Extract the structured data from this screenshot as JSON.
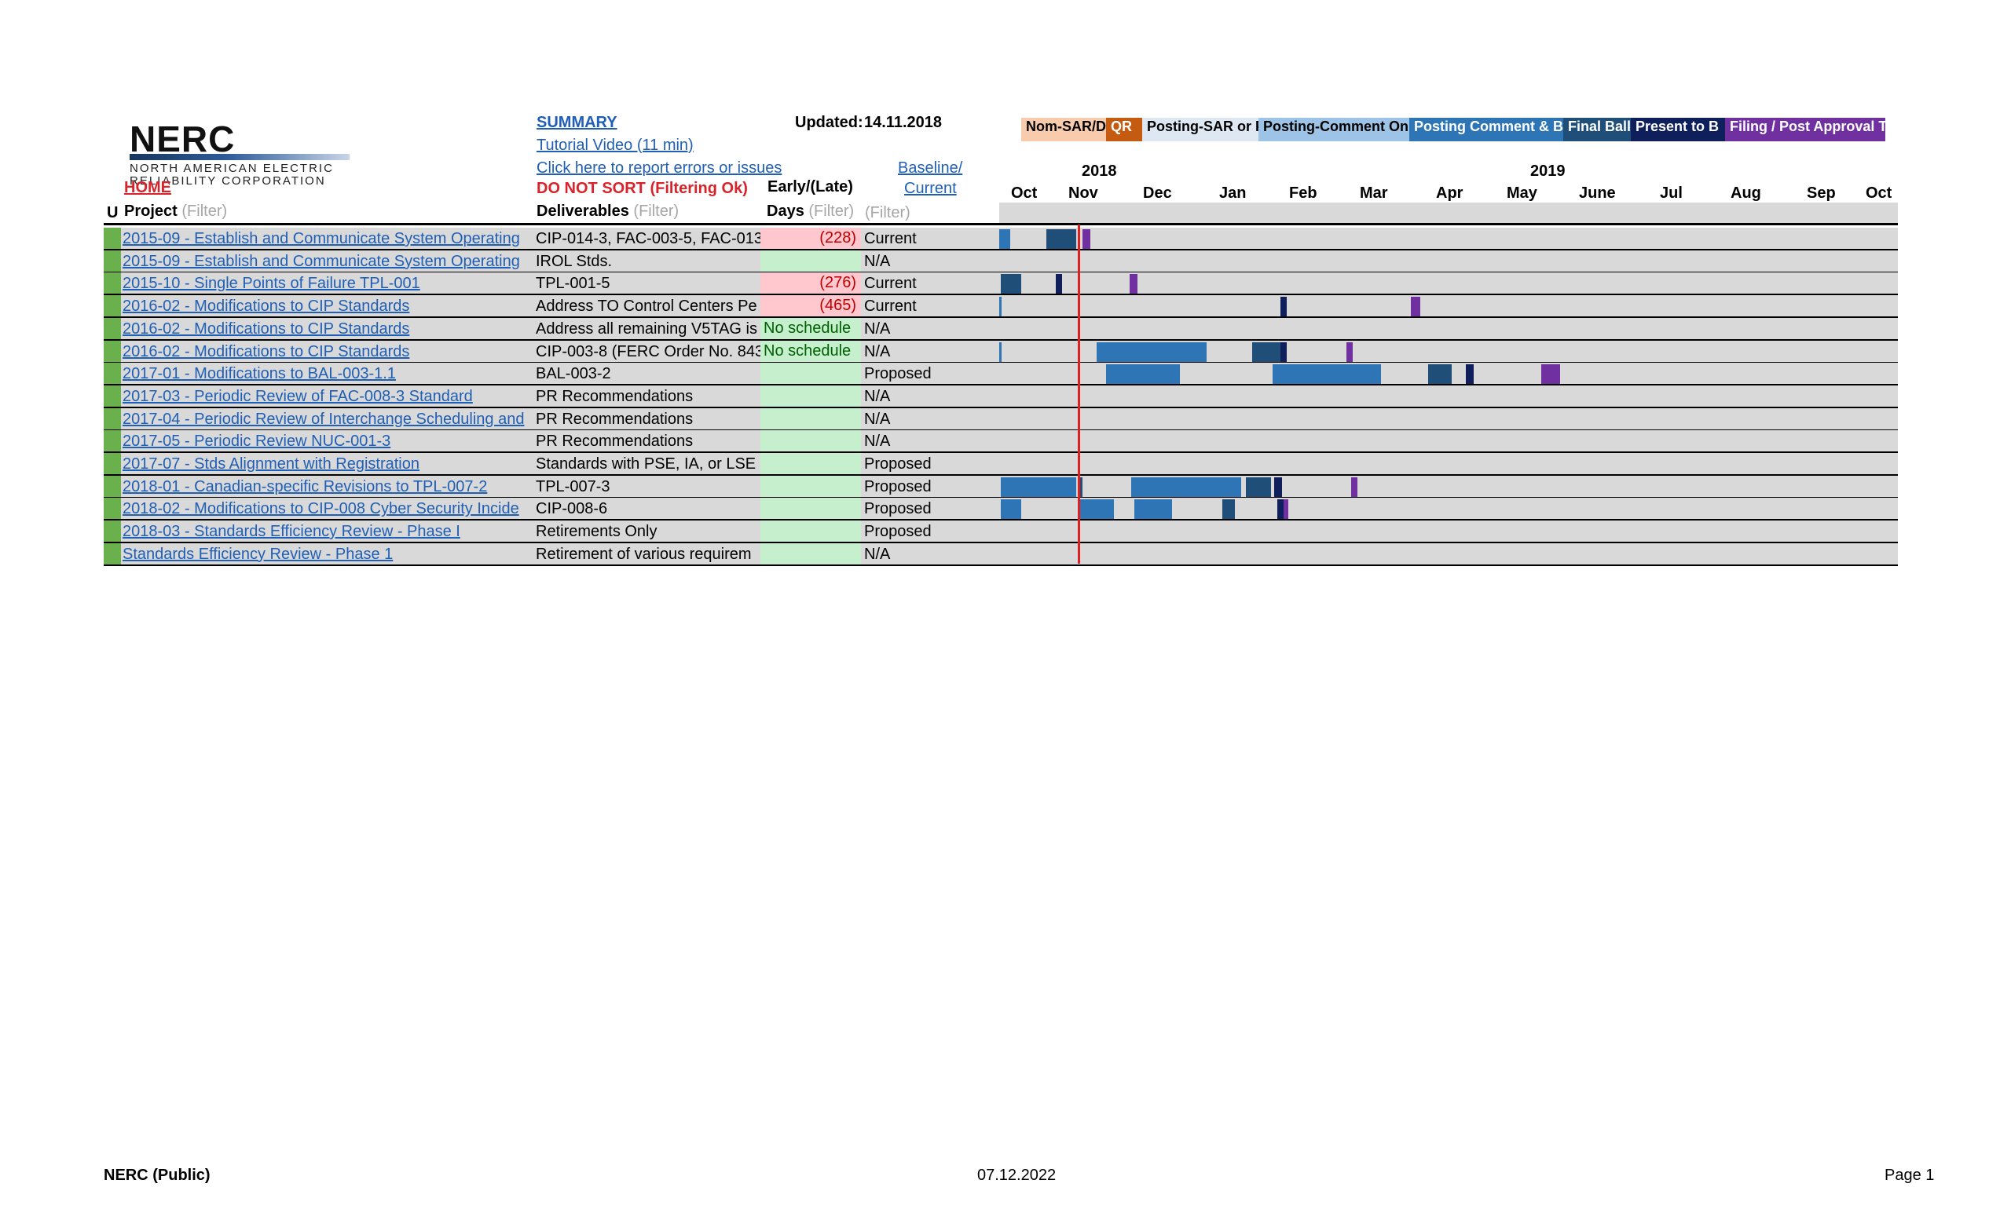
{
  "logo": {
    "word": "NERC",
    "line1": "NORTH AMERICAN ELECTRIC",
    "line2": "RELIABILITY CORPORATION"
  },
  "header": {
    "home": "HOME",
    "summary": "SUMMARY",
    "tutorial": "Tutorial Video (11 min)",
    "report": "Click here to report errors or issues",
    "do_not_sort": "DO NOT SORT (Filtering Ok)",
    "updated_label": "Updated:",
    "updated_value": "14.11.2018",
    "baseline": "Baseline/",
    "current": "Current",
    "early_late": "Early/(Late)"
  },
  "columns": {
    "u": "U",
    "project": "Project",
    "deliverables": "Deliverables",
    "days": "Days",
    "filter": "(Filter)"
  },
  "legend": [
    {
      "label": "Nom-SAR/D",
      "bg": "#f8cbad",
      "color": "#000000"
    },
    {
      "label": "QR",
      "bg": "#c55a11",
      "color": "#ffffff"
    },
    {
      "label": "Posting-SAR or P",
      "bg": "#dde8f3",
      "color": "#000000"
    },
    {
      "label": "Posting-Comment On",
      "bg": "#9dc3e6",
      "color": "#000000"
    },
    {
      "label": "Posting Comment & B",
      "bg": "#2e75b6",
      "color": "#ffffff"
    },
    {
      "label": "Final Ballo",
      "bg": "#1f4e79",
      "color": "#ffffff"
    },
    {
      "label": "Present to B",
      "bg": "#0f1f5c",
      "color": "#ffffff"
    },
    {
      "label": "Filing / Post Approval Tr",
      "bg": "#7030a0",
      "color": "#ffffff"
    }
  ],
  "timeline": {
    "years": [
      "2018",
      "2019"
    ],
    "months": [
      "Oct",
      "Nov",
      "Dec",
      "Jan",
      "Feb",
      "Mar",
      "Apr",
      "May",
      "June",
      "Jul",
      "Aug",
      "Sep",
      "Oct"
    ]
  },
  "rows": [
    {
      "project": "2015-09 - Establish and Communicate System Operating",
      "deliverable": "CIP-014-3, FAC-003-5, FAC-013",
      "days": "(228)",
      "days_type": "late",
      "baseline": "Current"
    },
    {
      "project": "2015-09 - Establish and Communicate System Operating",
      "deliverable": "IROL Stds.",
      "days": "",
      "days_type": "ok",
      "baseline": "N/A"
    },
    {
      "project": "2015-10 - Single Points of Failure TPL-001",
      "deliverable": "TPL-001-5",
      "days": "(276)",
      "days_type": "late",
      "baseline": "Current"
    },
    {
      "project": "2016-02 - Modifications to CIP Standards",
      "deliverable": "Address TO Control Centers Pe",
      "days": "(465)",
      "days_type": "late",
      "baseline": "Current"
    },
    {
      "project": "2016-02 - Modifications to CIP Standards",
      "deliverable": "Address all remaining V5TAG is",
      "days": "No schedule",
      "days_type": "ok",
      "baseline": "N/A"
    },
    {
      "project": "2016-02 - Modifications to CIP Standards",
      "deliverable": "CIP-003-8 (FERC Order No. 843",
      "days": "No schedule",
      "days_type": "ok",
      "baseline": "N/A"
    },
    {
      "project": "2017-01 - Modifications to BAL-003-1.1",
      "deliverable": "BAL-003-2",
      "days": "",
      "days_type": "ok",
      "baseline": "Proposed"
    },
    {
      "project": "2017-03 - Periodic Review of FAC-008-3 Standard",
      "deliverable": "PR  Recommendations",
      "days": "",
      "days_type": "ok",
      "baseline": "N/A"
    },
    {
      "project": "2017-04 - Periodic Review of Interchange Scheduling and",
      "deliverable": "PR Recommendations",
      "days": "",
      "days_type": "ok",
      "baseline": "N/A"
    },
    {
      "project": "2017-05 - Periodic Review NUC-001-3",
      "deliverable": "PR  Recommendations",
      "days": "",
      "days_type": "ok",
      "baseline": "N/A"
    },
    {
      "project": "2017-07 - Stds Alignment with Registration",
      "deliverable": "Standards with PSE, IA, or LSE",
      "days": "",
      "days_type": "ok",
      "baseline": "Proposed"
    },
    {
      "project": "2018-01 - Canadian-specific Revisions to TPL-007-2",
      "deliverable": "TPL-007-3",
      "days": "",
      "days_type": "ok",
      "baseline": "Proposed"
    },
    {
      "project": "2018-02 - Modifications to CIP-008 Cyber Security Incide",
      "deliverable": "CIP-008-6",
      "days": "",
      "days_type": "ok",
      "baseline": "Proposed"
    },
    {
      "project": "2018-03 - Standards Efficiency Review - Phase I",
      "deliverable": "Retirements Only",
      "days": "",
      "days_type": "ok",
      "baseline": "Proposed"
    },
    {
      "project": "Standards Efficiency Review - Phase 1",
      "deliverable": "Retirement of various requirem",
      "days": "",
      "days_type": "ok",
      "baseline": "N/A"
    }
  ],
  "footer": {
    "left": "NERC (Public)",
    "center": "07.12.2022",
    "right": "Page 1"
  }
}
